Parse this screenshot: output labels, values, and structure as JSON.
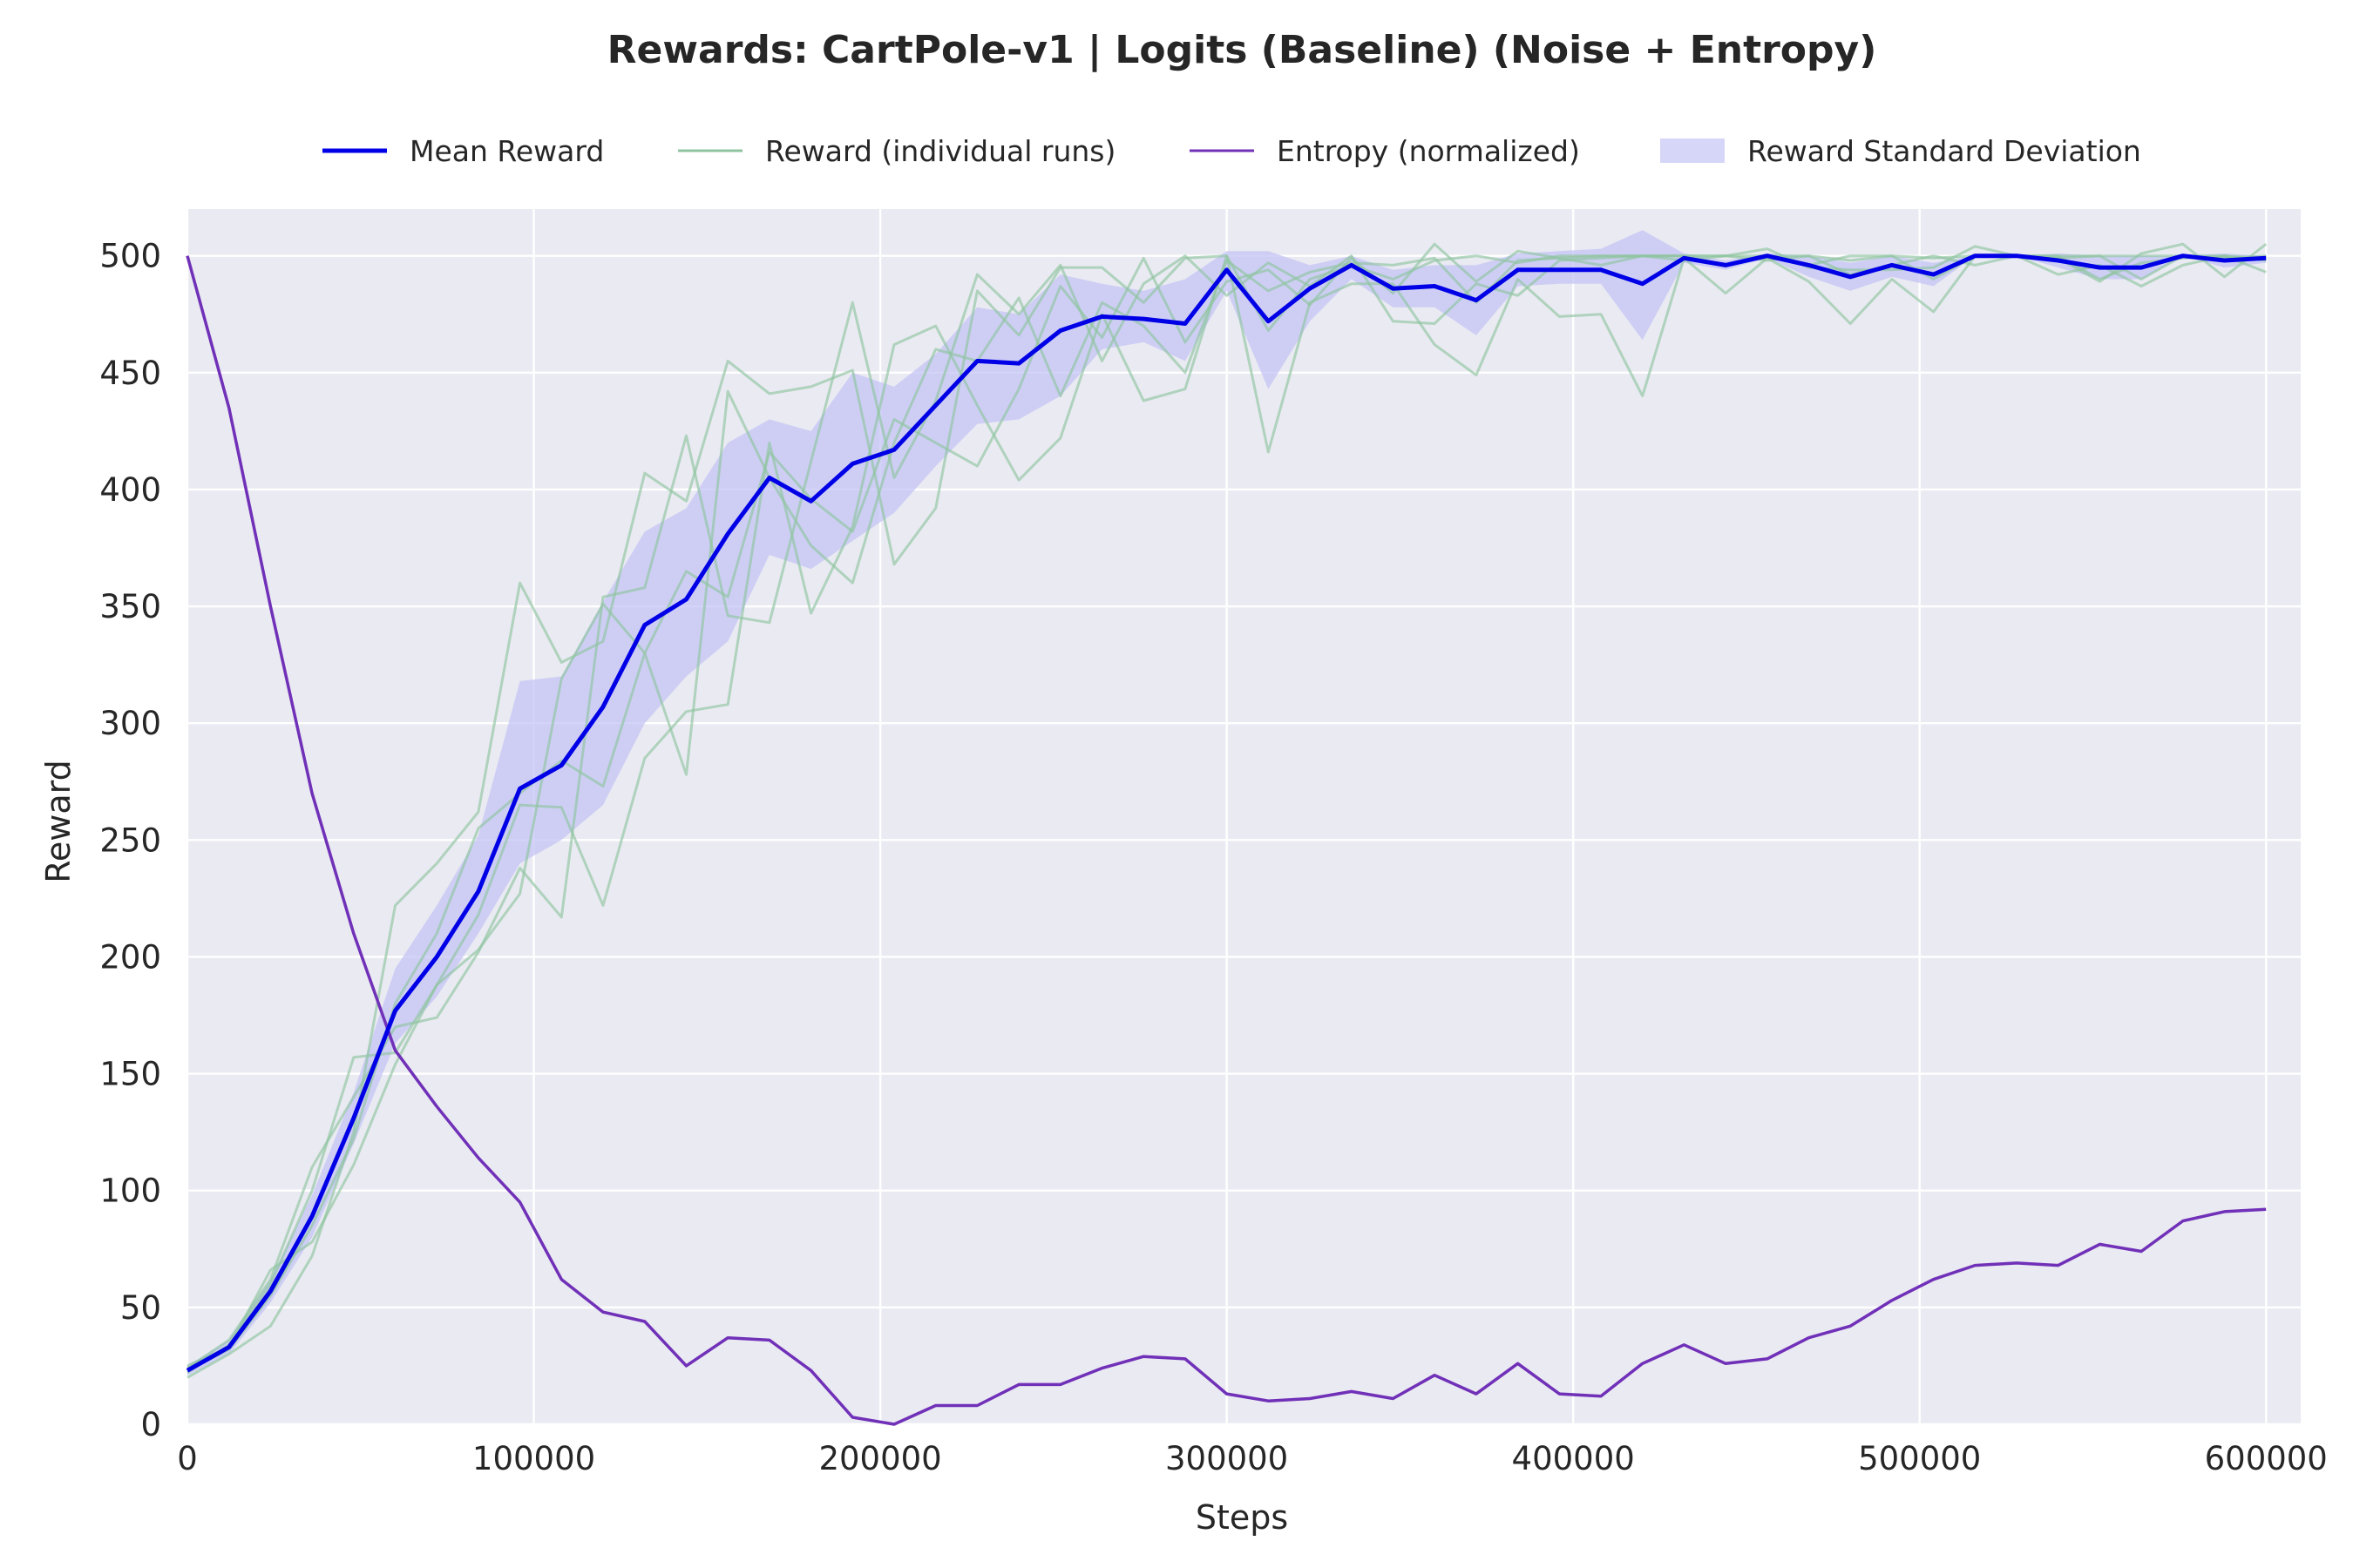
{
  "chart_data": {
    "type": "line",
    "title": "Rewards: CartPole-v1 | Logits (Baseline) (Noise + Entropy)",
    "xlabel": "Steps",
    "ylabel": "Reward",
    "xlim": [
      0,
      610000
    ],
    "ylim": [
      0,
      520
    ],
    "xticks": [
      0,
      100000,
      200000,
      300000,
      400000,
      500000,
      600000
    ],
    "yticks": [
      0,
      50,
      100,
      150,
      200,
      250,
      300,
      350,
      400,
      450,
      500
    ],
    "grid": true,
    "legend_position": "top",
    "legend": [
      {
        "label": "Mean Reward",
        "style": "line-thick",
        "color": "#0000e6"
      },
      {
        "label": "Reward (individual runs)",
        "style": "line-thin",
        "color": "#8fc49f"
      },
      {
        "label": "Entropy (normalized)",
        "style": "line-thin",
        "color": "#7030b8"
      },
      {
        "label": "Reward Standard Deviation",
        "style": "patch",
        "color": "#c8c8f5"
      }
    ],
    "colors": {
      "background": "#eaeaf2",
      "grid": "#ffffff",
      "mean": "#0000e6",
      "runs": "#8fc49f",
      "entropy": "#7030b8",
      "std_band": "#c4c4f5"
    },
    "x": [
      0,
      12000,
      24000,
      36000,
      48000,
      60000,
      72000,
      84000,
      96000,
      108000,
      120000,
      132000,
      144000,
      156000,
      168000,
      180000,
      192000,
      204000,
      216000,
      228000,
      240000,
      252000,
      264000,
      276000,
      288000,
      300000,
      312000,
      324000,
      336000,
      348000,
      360000,
      372000,
      384000,
      396000,
      408000,
      420000,
      432000,
      444000,
      456000,
      468000,
      480000,
      492000,
      504000,
      516000,
      528000,
      540000,
      552000,
      564000,
      576000,
      588000,
      600000
    ],
    "series": [
      {
        "name": "Mean Reward",
        "role": "mean",
        "values": [
          23,
          33,
          57,
          89,
          131,
          177,
          200,
          228,
          272,
          282,
          307,
          342,
          353,
          381,
          405,
          395,
          411,
          417,
          436,
          455,
          454,
          468,
          474,
          473,
          471,
          494,
          472,
          486,
          496,
          486,
          487,
          481,
          494,
          494,
          494,
          488,
          499,
          496,
          500,
          496,
          491,
          496,
          492,
          500,
          500,
          498,
          495,
          495,
          500,
          498,
          499
        ]
      },
      {
        "name": "Reward Standard Deviation",
        "role": "band",
        "lower": [
          21,
          30,
          52,
          80,
          120,
          163,
          183,
          210,
          240,
          250,
          265,
          300,
          320,
          335,
          372,
          366,
          378,
          390,
          410,
          428,
          430,
          440,
          460,
          463,
          455,
          485,
          443,
          472,
          490,
          478,
          478,
          466,
          487,
          488,
          488,
          464,
          497,
          494,
          499,
          491,
          485,
          491,
          487,
          500,
          500,
          495,
          490,
          490,
          500,
          495,
          497
        ],
        "upper": [
          25,
          36,
          62,
          98,
          142,
          195,
          222,
          252,
          318,
          320,
          352,
          382,
          392,
          420,
          430,
          425,
          450,
          444,
          458,
          478,
          475,
          492,
          488,
          485,
          490,
          502,
          502,
          496,
          500,
          494,
          496,
          496,
          501,
          502,
          503,
          511,
          501,
          498,
          501,
          500,
          497,
          500,
          497,
          500,
          500,
          501,
          500,
          500,
          500,
          501,
          500
        ]
      },
      {
        "name": "Run 1",
        "role": "run",
        "values": [
          20,
          30,
          42,
          72,
          125,
          222,
          240,
          262,
          360,
          326,
          335,
          407,
          395,
          455,
          441,
          444,
          451,
          368,
          392,
          485,
          466,
          495,
          495,
          480,
          499,
          500,
          468,
          490,
          496,
          490,
          498,
          500,
          497,
          500,
          500,
          500,
          500,
          496,
          500,
          500,
          492,
          496,
          500,
          496,
          500,
          500,
          500,
          490,
          500,
          500,
          499
        ]
      },
      {
        "name": "Run 2",
        "role": "run",
        "values": [
          22,
          34,
          60,
          100,
          157,
          159,
          188,
          218,
          265,
          264,
          222,
          285,
          305,
          308,
          420,
          347,
          384,
          462,
          470,
          436,
          404,
          422,
          475,
          438,
          443,
          500,
          416,
          480,
          488,
          488,
          462,
          449,
          490,
          474,
          475,
          440,
          499,
          484,
          499,
          489,
          471,
          490,
          476,
          500,
          500,
          492,
          496,
          487,
          496,
          500,
          493
        ]
      },
      {
        "name": "Run 3",
        "role": "run",
        "values": [
          24,
          36,
          62,
          110,
          140,
          170,
          174,
          202,
          238,
          217,
          354,
          358,
          423,
          346,
          343,
          412,
          480,
          405,
          438,
          492,
          475,
          496,
          455,
          488,
          500,
          483,
          497,
          487,
          500,
          472,
          471,
          488,
          483,
          498,
          499,
          500,
          498,
          500,
          498,
          500,
          498,
          500,
          499,
          500,
          500,
          500,
          490,
          497,
          499,
          500,
          498
        ]
      },
      {
        "name": "Run 4",
        "role": "run",
        "values": [
          23,
          32,
          55,
          85,
          122,
          180,
          210,
          255,
          270,
          284,
          273,
          330,
          278,
          442,
          405,
          376,
          360,
          420,
          460,
          455,
          482,
          440,
          480,
          470,
          450,
          498,
          485,
          493,
          497,
          496,
          499,
          480,
          498,
          499,
          500,
          500,
          500,
          500,
          500,
          496,
          500,
          500,
          490,
          500,
          500,
          499,
          500,
          500,
          500,
          499,
          500
        ]
      },
      {
        "name": "Run 5",
        "role": "run",
        "values": [
          25,
          33,
          66,
          78,
          111,
          154,
          188,
          203,
          227,
          319,
          351,
          330,
          365,
          354,
          416,
          396,
          382,
          430,
          420,
          410,
          443,
          487,
          465,
          499,
          463,
          489,
          494,
          479,
          499,
          484,
          505,
          489,
          502,
          499,
          496,
          500,
          500,
          500,
          503,
          495,
          494,
          494,
          495,
          504,
          500,
          499,
          489,
          501,
          505,
          491,
          505
        ]
      },
      {
        "name": "Entropy (normalized)",
        "role": "entropy",
        "values": [
          500,
          435,
          350,
          270,
          210,
          160,
          136,
          114,
          95,
          62,
          48,
          44,
          25,
          37,
          36,
          23,
          3,
          0,
          8,
          8,
          17,
          17,
          24,
          29,
          28,
          13,
          10,
          11,
          14,
          11,
          21,
          13,
          26,
          13,
          12,
          26,
          34,
          26,
          28,
          37,
          42,
          53,
          62,
          68,
          69,
          68,
          77,
          74,
          87,
          91,
          92
        ]
      }
    ]
  }
}
